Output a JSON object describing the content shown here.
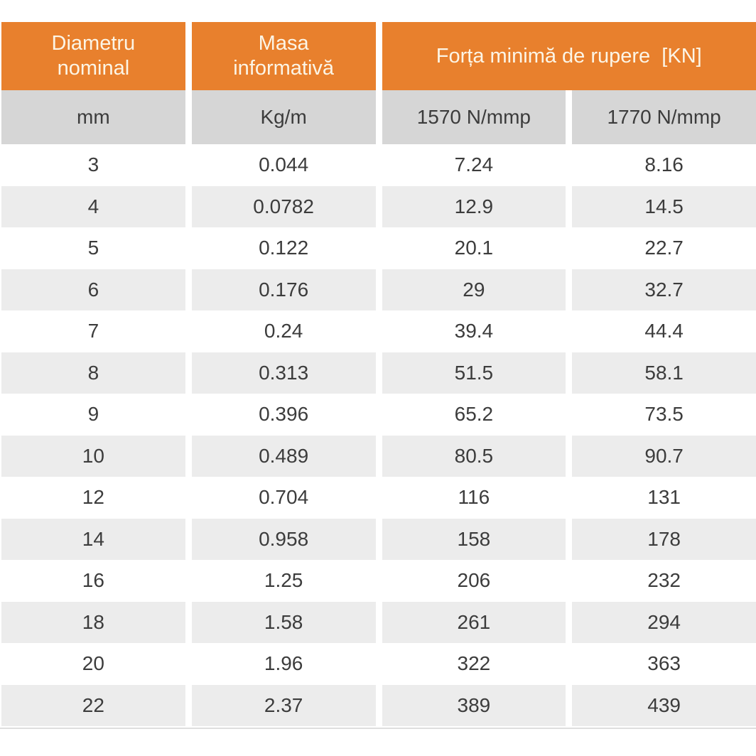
{
  "colors": {
    "accent_orange": "#E8802D",
    "header_text": "#FCF5E6",
    "subheader_gray": "#D6D6D6",
    "row_stripe_gray": "#ECECEC",
    "body_text": "#3C3C3C"
  },
  "table": {
    "header": {
      "col_diametru": "Diametru\nnominal",
      "col_masa": "Masa\ninformativă",
      "col_forta": "Forța minimă de rupere  [KN]"
    }
  },
  "chart_data": {
    "type": "table",
    "column_groups": [
      "Diametru nominal",
      "Masa informativă",
      "Forța minimă de rupere  [KN]"
    ],
    "columns": [
      "mm",
      "Kg/m",
      "1570 N/mmp",
      "1770 N/mmp"
    ],
    "rows": [
      [
        "3",
        "0.044",
        "7.24",
        "8.16"
      ],
      [
        "4",
        "0.0782",
        "12.9",
        "14.5"
      ],
      [
        "5",
        "0.122",
        "20.1",
        "22.7"
      ],
      [
        "6",
        "0.176",
        "29",
        "32.7"
      ],
      [
        "7",
        "0.24",
        "39.4",
        "44.4"
      ],
      [
        "8",
        "0.313",
        "51.5",
        "58.1"
      ],
      [
        "9",
        "0.396",
        "65.2",
        "73.5"
      ],
      [
        "10",
        "0.489",
        "80.5",
        "90.7"
      ],
      [
        "12",
        "0.704",
        "116",
        "131"
      ],
      [
        "14",
        "0.958",
        "158",
        "178"
      ],
      [
        "16",
        "1.25",
        "206",
        "232"
      ],
      [
        "18",
        "1.58",
        "261",
        "294"
      ],
      [
        "20",
        "1.96",
        "322",
        "363"
      ],
      [
        "22",
        "2.37",
        "389",
        "439"
      ]
    ]
  }
}
